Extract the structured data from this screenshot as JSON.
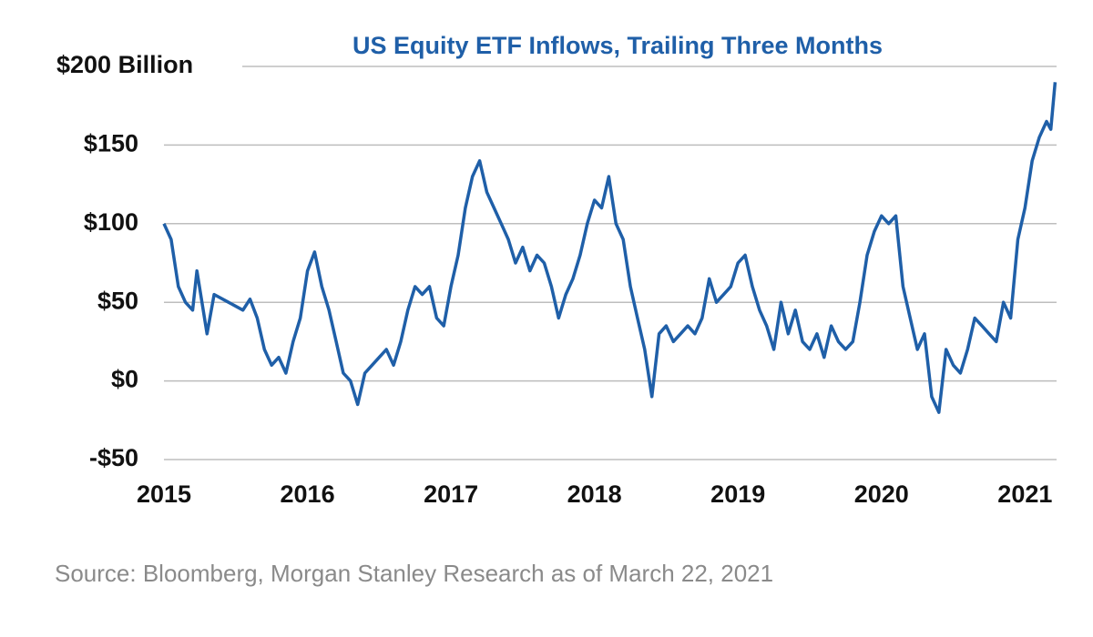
{
  "chart_data": {
    "type": "line",
    "title": "US Equity ETF Inflows, Trailing Three Months",
    "source": "Source: Bloomberg, Morgan Stanley Research as of March 22, 2021",
    "x": [
      2015.0,
      2015.05,
      2015.1,
      2015.15,
      2015.2,
      2015.23,
      2015.3,
      2015.35,
      2015.45,
      2015.55,
      2015.6,
      2015.65,
      2015.7,
      2015.75,
      2015.8,
      2015.85,
      2015.9,
      2015.95,
      2016.0,
      2016.05,
      2016.1,
      2016.15,
      2016.2,
      2016.25,
      2016.3,
      2016.35,
      2016.4,
      2016.45,
      2016.5,
      2016.55,
      2016.6,
      2016.65,
      2016.7,
      2016.75,
      2016.8,
      2016.85,
      2016.9,
      2016.95,
      2017.0,
      2017.05,
      2017.1,
      2017.15,
      2017.2,
      2017.25,
      2017.3,
      2017.35,
      2017.4,
      2017.45,
      2017.5,
      2017.55,
      2017.6,
      2017.65,
      2017.7,
      2017.75,
      2017.8,
      2017.85,
      2017.9,
      2017.95,
      2018.0,
      2018.05,
      2018.1,
      2018.15,
      2018.2,
      2018.25,
      2018.3,
      2018.35,
      2018.4,
      2018.45,
      2018.5,
      2018.55,
      2018.6,
      2018.65,
      2018.7,
      2018.75,
      2018.8,
      2018.85,
      2018.9,
      2018.95,
      2019.0,
      2019.05,
      2019.1,
      2019.15,
      2019.2,
      2019.25,
      2019.3,
      2019.35,
      2019.4,
      2019.45,
      2019.5,
      2019.55,
      2019.6,
      2019.65,
      2019.7,
      2019.75,
      2019.8,
      2019.85,
      2019.9,
      2019.95,
      2020.0,
      2020.05,
      2020.1,
      2020.15,
      2020.2,
      2020.25,
      2020.3,
      2020.35,
      2020.4,
      2020.45,
      2020.5,
      2020.55,
      2020.6,
      2020.65,
      2020.7,
      2020.75,
      2020.8,
      2020.85,
      2020.9,
      2020.95,
      2021.0,
      2021.05,
      2021.1,
      2021.15,
      2021.18,
      2021.21
    ],
    "series": [
      {
        "name": "US Equity ETF Inflows",
        "color": "#1f5fa8",
        "values": [
          100,
          90,
          60,
          50,
          45,
          70,
          30,
          55,
          50,
          45,
          52,
          40,
          20,
          10,
          15,
          5,
          25,
          40,
          70,
          82,
          60,
          45,
          25,
          5,
          0,
          -15,
          5,
          10,
          15,
          20,
          10,
          25,
          45,
          60,
          55,
          60,
          40,
          35,
          60,
          80,
          110,
          130,
          140,
          120,
          110,
          100,
          90,
          75,
          85,
          70,
          80,
          75,
          60,
          40,
          55,
          65,
          80,
          100,
          115,
          110,
          130,
          100,
          90,
          60,
          40,
          20,
          -10,
          30,
          35,
          25,
          30,
          35,
          30,
          40,
          65,
          50,
          55,
          60,
          75,
          80,
          60,
          45,
          35,
          20,
          50,
          30,
          45,
          25,
          20,
          30,
          15,
          35,
          25,
          20,
          25,
          50,
          80,
          95,
          105,
          100,
          105,
          60,
          40,
          20,
          30,
          -10,
          -20,
          20,
          10,
          5,
          20,
          40,
          35,
          30,
          25,
          50,
          40,
          90,
          110,
          140,
          155,
          165,
          160,
          190
        ]
      }
    ],
    "xlim": [
      2015,
      2021.22
    ],
    "xticks": [
      2015,
      2016,
      2017,
      2018,
      2019,
      2020,
      2021
    ],
    "ylim": [
      -50,
      200
    ],
    "yticks": [
      {
        "value": -50,
        "label": "-$50"
      },
      {
        "value": 0,
        "label": "$0"
      },
      {
        "value": 50,
        "label": "$50"
      },
      {
        "value": 100,
        "label": "$100"
      },
      {
        "value": 150,
        "label": "$150"
      },
      {
        "value": 200,
        "label": "$200 Billion"
      }
    ],
    "grid": true
  }
}
